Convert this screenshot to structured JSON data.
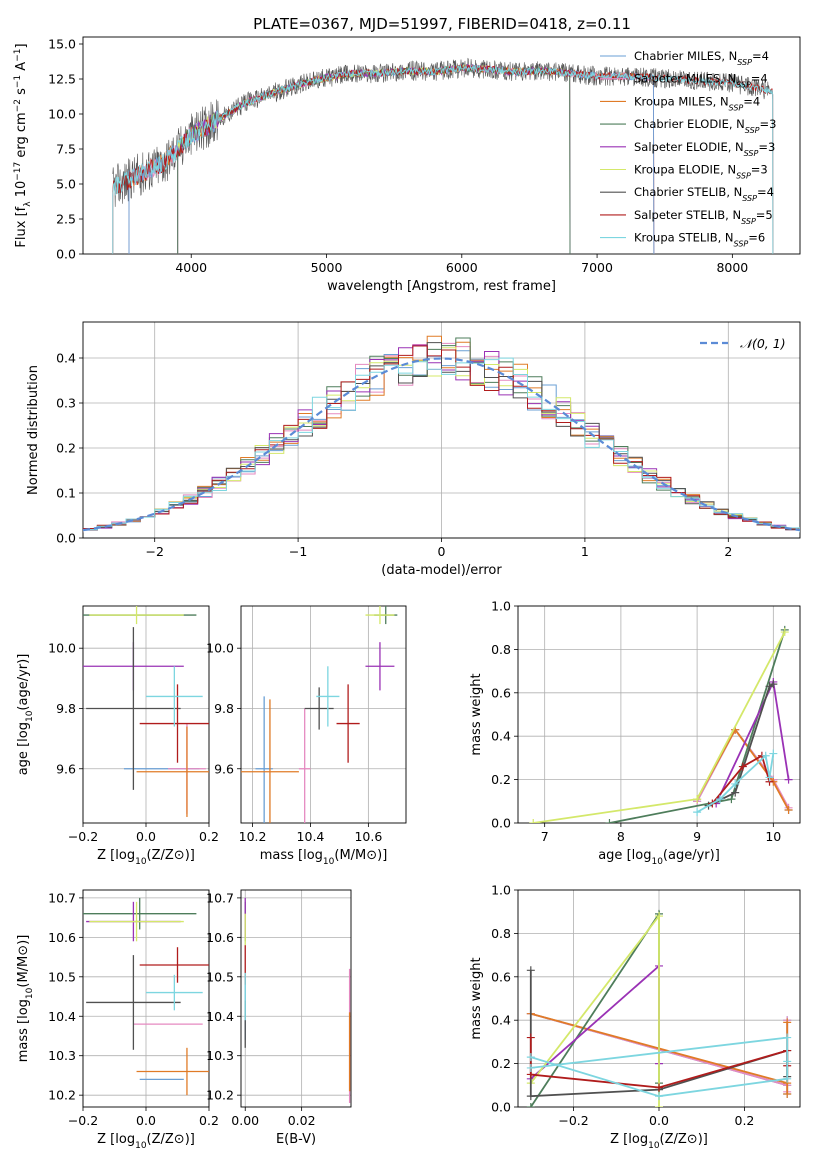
{
  "figure_title": "PLATE=0367, MJD=51997, FIBERID=0418, z=0.11",
  "colors": {
    "Chabrier MILES": "#6a9fd4",
    "Salpeter MILES": "#e58ac1",
    "Kroupa MILES": "#e07b27",
    "Chabrier ELODIE": "#4e7d5b",
    "Salpeter ELODIE": "#9a32b5",
    "Kroupa ELODIE": "#d4e86a",
    "Chabrier STELIB": "#505050",
    "Salpeter STELIB": "#b01c1c",
    "Kroupa STELIB": "#7dd6e0",
    "gaussian": "#5b8bd6"
  },
  "chart_data": [
    {
      "id": "spectrum",
      "type": "line",
      "title": "PLATE=0367, MJD=51997, FIBERID=0418, z=0.11",
      "xlabel": "wavelength [Angstrom, rest frame]",
      "ylabel": "Flux [f_λ 10^-17 erg cm^-2 s^-1 A^-1]",
      "xlim": [
        3200,
        8500
      ],
      "ylim": [
        0,
        15.5
      ],
      "xticks": [
        4000,
        5000,
        6000,
        7000,
        8000
      ],
      "yticks": [
        0.0,
        2.5,
        5.0,
        7.5,
        10.0,
        12.5,
        15.0
      ],
      "ytick_labels": [
        "0.0",
        "2.5",
        "5.0",
        "7.5",
        "10.0",
        "12.5",
        "15.0"
      ],
      "legend_position": "right",
      "legend": [
        {
          "name": "Chabrier MILES",
          "nssp": "4"
        },
        {
          "name": "Salpeter MILES",
          "nssp": "4"
        },
        {
          "name": "Kroupa MILES",
          "nssp": "4"
        },
        {
          "name": "Chabrier ELODIE",
          "nssp": "3"
        },
        {
          "name": "Salpeter ELODIE",
          "nssp": "3"
        },
        {
          "name": "Kroupa ELODIE",
          "nssp": "3"
        },
        {
          "name": "Chabrier STELIB",
          "nssp": "4"
        },
        {
          "name": "Salpeter STELIB",
          "nssp": "5"
        },
        {
          "name": "Kroupa STELIB",
          "nssp": "6"
        }
      ],
      "continuum": {
        "x": [
          3420,
          3600,
          3800,
          4000,
          4200,
          4400,
          4600,
          4800,
          5000,
          5200,
          5400,
          5600,
          5800,
          6000,
          6200,
          6400,
          6600,
          6800,
          7000,
          7200,
          7400,
          7600,
          7800,
          8000,
          8200,
          8300
        ],
        "y": [
          4.7,
          5.6,
          6.5,
          8.5,
          9.6,
          10.8,
          11.5,
          12.1,
          12.6,
          12.9,
          12.9,
          13.1,
          13.0,
          13.3,
          13.2,
          13.0,
          13.1,
          12.9,
          12.7,
          12.7,
          12.6,
          12.5,
          12.3,
          12.2,
          11.8,
          11.6
        ]
      },
      "model_cutoffs": [
        {
          "series": "Kroupa MILES",
          "x_start": 3540,
          "x_end": 7420
        },
        {
          "series": "Salpeter MILES",
          "x_start": 3540,
          "x_end": 7420
        },
        {
          "series": "Chabrier MILES",
          "x_start": 3540,
          "x_end": 7420
        },
        {
          "series": "Kroupa ELODIE",
          "x_start": 3900,
          "x_end": 6800
        },
        {
          "series": "Salpeter ELODIE",
          "x_start": 3900,
          "x_end": 6800
        },
        {
          "series": "Chabrier ELODIE",
          "x_start": 3900,
          "x_end": 6800
        },
        {
          "series": "Salpeter STELIB",
          "x_start": 3420,
          "x_end": 8300
        },
        {
          "series": "Kroupa STELIB",
          "x_start": 3420,
          "x_end": 8300
        }
      ]
    },
    {
      "id": "residuals",
      "type": "bar",
      "xlabel": "(data-model)/error",
      "ylabel": "Normed distribution",
      "xlim": [
        -2.5,
        2.5
      ],
      "ylim": [
        0,
        0.48
      ],
      "xticks": [
        -2,
        -1,
        0,
        1,
        2
      ],
      "xtick_labels": [
        "−2",
        "−1",
        "0",
        "1",
        "2"
      ],
      "yticks": [
        0.0,
        0.1,
        0.2,
        0.3,
        0.4
      ],
      "ytick_labels": [
        "0.0",
        "0.1",
        "0.2",
        "0.3",
        "0.4"
      ],
      "grid": true,
      "legend_position": "top-right",
      "legend": [
        "𝒩(0, 1)"
      ],
      "bin_width": 0.1,
      "series": [
        {
          "name": "Chabrier MILES",
          "jitter_seed": 1
        },
        {
          "name": "Salpeter MILES",
          "jitter_seed": 2
        },
        {
          "name": "Kroupa MILES",
          "jitter_seed": 3
        },
        {
          "name": "Chabrier ELODIE",
          "jitter_seed": 4
        },
        {
          "name": "Salpeter ELODIE",
          "jitter_seed": 5
        },
        {
          "name": "Kroupa ELODIE",
          "jitter_seed": 6
        },
        {
          "name": "Chabrier STELIB",
          "jitter_seed": 7
        },
        {
          "name": "Salpeter STELIB",
          "jitter_seed": 8
        },
        {
          "name": "Kroupa STELIB",
          "jitter_seed": 9
        }
      ],
      "gaussian": {
        "mean": 0,
        "sigma": 1
      }
    },
    {
      "id": "age_vs_Z",
      "type": "scatter",
      "xlabel": "Z [log10(Z/Z⊙)]",
      "ylabel": "age [log10(age/yr)]",
      "xlim": [
        -0.2,
        0.2
      ],
      "ylim": [
        9.42,
        10.14
      ],
      "xticks": [
        -0.2,
        0.0,
        0.2
      ],
      "xtick_labels": [
        "−0.2",
        "0.0",
        "0.2"
      ],
      "yticks": [
        9.6,
        9.8,
        10.0
      ],
      "ytick_labels": [
        "9.6",
        "9.8",
        "10.0"
      ],
      "grid": true,
      "points": [
        {
          "series": "Chabrier MILES",
          "x": 0.05,
          "xerr": 0.12,
          "y": 9.6,
          "yerr": 0.0
        },
        {
          "series": "Salpeter MILES",
          "x": 0.13,
          "xerr": 0.06,
          "y": 9.6,
          "yerr": 0.15
        },
        {
          "series": "Kroupa MILES",
          "x": 0.13,
          "xerr": 0.16,
          "y": 9.59,
          "yerr": 0.15
        },
        {
          "series": "Chabrier ELODIE",
          "x": -0.02,
          "xerr": 0.18,
          "y": 10.11,
          "yerr": 0.0
        },
        {
          "series": "Salpeter ELODIE",
          "x": -0.04,
          "xerr": 0.16,
          "y": 9.94,
          "yerr": 0.08
        },
        {
          "series": "Kroupa ELODIE",
          "x": -0.03,
          "xerr": 0.15,
          "y": 10.11,
          "yerr": 0.03
        },
        {
          "series": "Chabrier STELIB",
          "x": -0.04,
          "xerr": 0.15,
          "y": 9.8,
          "yerr": 0.27
        },
        {
          "series": "Salpeter STELIB",
          "x": 0.1,
          "xerr": 0.12,
          "y": 9.75,
          "yerr": 0.13
        },
        {
          "series": "Kroupa STELIB",
          "x": 0.09,
          "xerr": 0.09,
          "y": 9.84,
          "yerr": 0.1
        }
      ]
    },
    {
      "id": "age_vs_mass",
      "type": "scatter",
      "xlabel": "mass [log10(M/M⊙)]",
      "ylabel": "",
      "xlim": [
        10.16,
        10.73
      ],
      "ylim": [
        9.42,
        10.14
      ],
      "xticks": [
        10.2,
        10.4,
        10.6
      ],
      "xtick_labels": [
        "10.2",
        "10.4",
        "10.6"
      ],
      "yticks": [
        9.6,
        9.8,
        10.0
      ],
      "ytick_labels": [
        "9.6",
        "9.8",
        "10.0"
      ],
      "grid": true,
      "points": [
        {
          "series": "Chabrier MILES",
          "x": 10.24,
          "xerr": 0.03,
          "y": 9.6,
          "yerr": 0.24
        },
        {
          "series": "Salpeter MILES",
          "x": 10.38,
          "xerr": 0.02,
          "y": 9.6,
          "yerr": 0.2
        },
        {
          "series": "Kroupa MILES",
          "x": 10.26,
          "xerr": 0.1,
          "y": 9.59,
          "yerr": 0.24
        },
        {
          "series": "Chabrier ELODIE",
          "x": 10.66,
          "xerr": 0.04,
          "y": 10.11,
          "yerr": 0.03
        },
        {
          "series": "Salpeter ELODIE",
          "x": 10.64,
          "xerr": 0.05,
          "y": 9.94,
          "yerr": 0.08
        },
        {
          "series": "Kroupa ELODIE",
          "x": 10.64,
          "xerr": 0.05,
          "y": 10.11,
          "yerr": 0.03
        },
        {
          "series": "Chabrier STELIB",
          "x": 10.43,
          "xerr": 0.05,
          "y": 9.8,
          "yerr": 0.07
        },
        {
          "series": "Salpeter STELIB",
          "x": 10.53,
          "xerr": 0.04,
          "y": 9.75,
          "yerr": 0.13
        },
        {
          "series": "Kroupa STELIB",
          "x": 10.46,
          "xerr": 0.04,
          "y": 9.84,
          "yerr": 0.1
        }
      ]
    },
    {
      "id": "massweight_vs_age",
      "type": "line",
      "xlabel": "age [log10(age/yr)]",
      "ylabel": "mass weight",
      "xlim": [
        6.65,
        10.35
      ],
      "ylim": [
        0,
        1.0
      ],
      "xticks": [
        7,
        8,
        9,
        10
      ],
      "xtick_labels": [
        "7",
        "8",
        "9",
        "10"
      ],
      "yticks": [
        0.0,
        0.2,
        0.4,
        0.6,
        0.8,
        1.0
      ],
      "ytick_labels": [
        "0.0",
        "0.2",
        "0.4",
        "0.6",
        "0.8",
        "1.0"
      ],
      "grid": true,
      "series": [
        {
          "name": "Chabrier MILES",
          "x": [
            9.0,
            9.5,
            10.0,
            10.2
          ],
          "y": [
            0.1,
            0.43,
            0.2,
            0.06
          ]
        },
        {
          "name": "Salpeter MILES",
          "x": [
            9.0,
            9.5,
            10.0,
            10.2
          ],
          "y": [
            0.1,
            0.43,
            0.2,
            0.07
          ]
        },
        {
          "name": "Kroupa MILES",
          "x": [
            9.0,
            9.5,
            10.0,
            10.2
          ],
          "y": [
            0.11,
            0.43,
            0.19,
            0.06
          ]
        },
        {
          "name": "Chabrier ELODIE",
          "x": [
            7.85,
            9.45,
            10.15
          ],
          "y": [
            0.0,
            0.11,
            0.89
          ]
        },
        {
          "name": "Salpeter ELODIE",
          "x": [
            9.25,
            10.0,
            10.2
          ],
          "y": [
            0.09,
            0.65,
            0.2
          ]
        },
        {
          "name": "Kroupa ELODIE",
          "x": [
            6.85,
            9.0,
            10.15
          ],
          "y": [
            0.0,
            0.11,
            0.88
          ]
        },
        {
          "name": "Chabrier STELIB",
          "x": [
            9.15,
            9.5,
            9.95,
            10.0
          ],
          "y": [
            0.08,
            0.14,
            0.63,
            0.64
          ]
        },
        {
          "name": "Salpeter STELIB",
          "x": [
            9.2,
            9.6,
            9.85,
            9.95
          ],
          "y": [
            0.09,
            0.26,
            0.31,
            0.19
          ]
        },
        {
          "name": "Kroupa STELIB",
          "x": [
            9.0,
            9.3,
            9.5,
            9.9,
            9.95,
            10.0
          ],
          "y": [
            0.05,
            0.11,
            0.18,
            0.31,
            0.21,
            0.32
          ]
        }
      ]
    },
    {
      "id": "mass_vs_Z",
      "type": "scatter",
      "xlabel": "Z [log10(Z/Z⊙)]",
      "ylabel": "mass [log10(M/M⊙)]",
      "xlim": [
        -0.2,
        0.2
      ],
      "ylim": [
        10.17,
        10.72
      ],
      "xticks": [
        -0.2,
        0.0,
        0.2
      ],
      "xtick_labels": [
        "−0.2",
        "0.0",
        "0.2"
      ],
      "yticks": [
        10.2,
        10.3,
        10.4,
        10.5,
        10.6,
        10.7
      ],
      "ytick_labels": [
        "10.2",
        "10.3",
        "10.4",
        "10.5",
        "10.6",
        "10.7"
      ],
      "grid": true,
      "points": [
        {
          "series": "Chabrier MILES",
          "x": 0.05,
          "xerr": 0.07,
          "y": 10.24,
          "yerr": 0.0
        },
        {
          "series": "Salpeter MILES",
          "x": 0.07,
          "xerr": 0.11,
          "y": 10.38,
          "yerr": 0.0
        },
        {
          "series": "Kroupa MILES",
          "x": 0.13,
          "xerr": 0.16,
          "y": 10.26,
          "yerr": 0.06
        },
        {
          "series": "Chabrier ELODIE",
          "x": -0.02,
          "xerr": 0.18,
          "y": 10.66,
          "yerr": 0.04
        },
        {
          "series": "Salpeter ELODIE",
          "x": -0.04,
          "xerr": 0.15,
          "y": 10.64,
          "yerr": 0.05
        },
        {
          "series": "Kroupa ELODIE",
          "x": -0.03,
          "xerr": 0.15,
          "y": 10.64,
          "yerr": 0.05
        },
        {
          "series": "Chabrier STELIB",
          "x": -0.04,
          "xerr": 0.15,
          "y": 10.435,
          "yerr": 0.12
        },
        {
          "series": "Salpeter STELIB",
          "x": 0.1,
          "xerr": 0.12,
          "y": 10.53,
          "yerr": 0.045
        },
        {
          "series": "Kroupa STELIB",
          "x": 0.09,
          "xerr": 0.09,
          "y": 10.46,
          "yerr": 0.045
        }
      ]
    },
    {
      "id": "mass_vs_ebv",
      "type": "scatter",
      "xlabel": "E(B-V)",
      "ylabel": "",
      "xlim": [
        -0.0015,
        0.0375
      ],
      "ylim": [
        10.17,
        10.72
      ],
      "xticks": [
        0.0,
        0.02
      ],
      "xtick_labels": [
        "0.00",
        "0.02"
      ],
      "yticks": [
        10.2,
        10.3,
        10.4,
        10.5,
        10.6,
        10.7
      ],
      "ytick_labels": [
        "10.2",
        "10.3",
        "10.4",
        "10.5",
        "10.6",
        "10.7"
      ],
      "grid": true,
      "points": [
        {
          "series": "Chabrier MILES",
          "x": 0.0,
          "xerr": 0.0,
          "y": 10.42,
          "yerr": 0.08
        },
        {
          "series": "Salpeter MILES",
          "x": 0.037,
          "xerr": 0.0,
          "y": 10.35,
          "yerr": 0.17
        },
        {
          "series": "Kroupa MILES",
          "x": 0.037,
          "xerr": 0.0,
          "y": 10.31,
          "yerr": 0.1
        },
        {
          "series": "Chabrier ELODIE",
          "x": 0.0,
          "xerr": 0.0,
          "y": 10.64,
          "yerr": 0.05
        },
        {
          "series": "Salpeter ELODIE",
          "x": 0.0,
          "xerr": 0.0,
          "y": 10.65,
          "yerr": 0.05
        },
        {
          "series": "Kroupa ELODIE",
          "x": 0.0,
          "xerr": 0.0,
          "y": 10.62,
          "yerr": 0.04
        },
        {
          "series": "Chabrier STELIB",
          "x": 0.0,
          "xerr": 0.0,
          "y": 10.38,
          "yerr": 0.06
        },
        {
          "series": "Salpeter STELIB",
          "x": 0.0,
          "xerr": 0.0,
          "y": 10.53,
          "yerr": 0.05
        },
        {
          "series": "Kroupa STELIB",
          "x": 0.0,
          "xerr": 0.0,
          "y": 10.45,
          "yerr": 0.06
        }
      ]
    },
    {
      "id": "massweight_vs_Z",
      "type": "line",
      "xlabel": "Z [log10(Z/Z⊙)]",
      "ylabel": "mass weight",
      "xlim": [
        -0.33,
        0.33
      ],
      "ylim": [
        0,
        1.0
      ],
      "xticks": [
        -0.2,
        0.0,
        0.2
      ],
      "xtick_labels": [
        "−0.2",
        "0.0",
        "0.2"
      ],
      "yticks": [
        0.0,
        0.2,
        0.4,
        0.6,
        0.8,
        1.0
      ],
      "ytick_labels": [
        "0.0",
        "0.2",
        "0.4",
        "0.6",
        "0.8",
        "1.0"
      ],
      "grid": true,
      "series": [
        {
          "name": "Chabrier MILES",
          "x": [
            -0.3,
            0.3,
            0.3,
            0.3
          ],
          "y": [
            0.43,
            0.1,
            0.06,
            0.4
          ]
        },
        {
          "name": "Salpeter MILES",
          "x": [
            -0.3,
            0.3,
            0.3,
            0.3
          ],
          "y": [
            0.43,
            0.1,
            0.07,
            0.4
          ]
        },
        {
          "name": "Kroupa MILES",
          "x": [
            -0.3,
            0.3,
            0.3,
            0.3
          ],
          "y": [
            0.43,
            0.11,
            0.06,
            0.39
          ]
        },
        {
          "name": "Chabrier ELODIE",
          "x": [
            -0.3,
            0.0,
            0.0
          ],
          "y": [
            0.0,
            0.89,
            0.11
          ]
        },
        {
          "name": "Salpeter ELODIE",
          "x": [
            -0.3,
            0.0,
            0.0
          ],
          "y": [
            0.13,
            0.65,
            0.2
          ]
        },
        {
          "name": "Kroupa ELODIE",
          "x": [
            -0.3,
            0.0,
            0.0
          ],
          "y": [
            0.11,
            0.88,
            0.0
          ]
        },
        {
          "name": "Chabrier STELIB",
          "x": [
            -0.3,
            -0.3,
            0.0,
            0.3,
            0.3
          ],
          "y": [
            0.63,
            0.05,
            0.08,
            0.26,
            0.14
          ]
        },
        {
          "name": "Salpeter STELIB",
          "x": [
            -0.3,
            -0.3,
            0.0,
            0.3,
            0.3
          ],
          "y": [
            0.32,
            0.15,
            0.09,
            0.26,
            0.19
          ]
        },
        {
          "name": "Kroupa STELIB",
          "x": [
            -0.3,
            0.0,
            0.3,
            0.3,
            0.3,
            -0.3
          ],
          "y": [
            0.23,
            0.05,
            0.13,
            0.21,
            0.32,
            0.18
          ]
        }
      ]
    }
  ]
}
